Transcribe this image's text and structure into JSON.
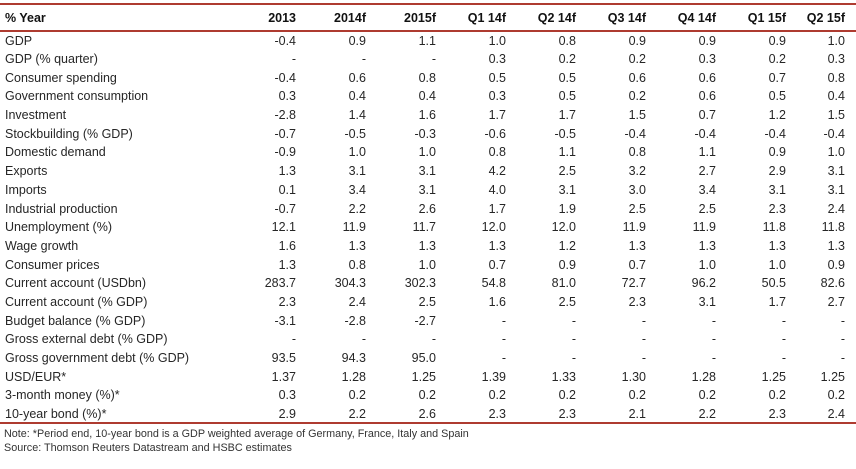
{
  "colors": {
    "rule_red": "#ae3b30",
    "text": "#262626",
    "background": "#ffffff"
  },
  "table": {
    "corner_header": "% Year",
    "column_headers": [
      "2013",
      "2014f",
      "2015f",
      "Q1 14f",
      "Q2 14f",
      "Q3 14f",
      "Q4 14f",
      "Q1 15f",
      "Q2 15f"
    ],
    "rows": [
      {
        "label": "GDP",
        "values": [
          "-0.4",
          "0.9",
          "1.1",
          "1.0",
          "0.8",
          "0.9",
          "0.9",
          "0.9",
          "1.0"
        ]
      },
      {
        "label": "GDP (% quarter)",
        "values": [
          "-",
          "-",
          "-",
          "0.3",
          "0.2",
          "0.2",
          "0.3",
          "0.2",
          "0.3"
        ]
      },
      {
        "label": "Consumer spending",
        "values": [
          "-0.4",
          "0.6",
          "0.8",
          "0.5",
          "0.5",
          "0.6",
          "0.6",
          "0.7",
          "0.8"
        ]
      },
      {
        "label": "Government consumption",
        "values": [
          "0.3",
          "0.4",
          "0.4",
          "0.3",
          "0.5",
          "0.2",
          "0.6",
          "0.5",
          "0.4"
        ]
      },
      {
        "label": "Investment",
        "values": [
          "-2.8",
          "1.4",
          "1.6",
          "1.7",
          "1.7",
          "1.5",
          "0.7",
          "1.2",
          "1.5"
        ]
      },
      {
        "label": "Stockbuilding (% GDP)",
        "values": [
          "-0.7",
          "-0.5",
          "-0.3",
          "-0.6",
          "-0.5",
          "-0.4",
          "-0.4",
          "-0.4",
          "-0.4"
        ]
      },
      {
        "label": "Domestic demand",
        "values": [
          "-0.9",
          "1.0",
          "1.0",
          "0.8",
          "1.1",
          "0.8",
          "1.1",
          "0.9",
          "1.0"
        ]
      },
      {
        "label": "Exports",
        "values": [
          "1.3",
          "3.1",
          "3.1",
          "4.2",
          "2.5",
          "3.2",
          "2.7",
          "2.9",
          "3.1"
        ]
      },
      {
        "label": "Imports",
        "values": [
          "0.1",
          "3.4",
          "3.1",
          "4.0",
          "3.1",
          "3.0",
          "3.4",
          "3.1",
          "3.1"
        ]
      },
      {
        "label": "Industrial production",
        "values": [
          "-0.7",
          "2.2",
          "2.6",
          "1.7",
          "1.9",
          "2.5",
          "2.5",
          "2.3",
          "2.4"
        ]
      },
      {
        "label": "Unemployment (%)",
        "values": [
          "12.1",
          "11.9",
          "11.7",
          "12.0",
          "12.0",
          "11.9",
          "11.9",
          "11.8",
          "11.8"
        ]
      },
      {
        "label": "Wage growth",
        "values": [
          "1.6",
          "1.3",
          "1.3",
          "1.3",
          "1.2",
          "1.3",
          "1.3",
          "1.3",
          "1.3"
        ]
      },
      {
        "label": "Consumer prices",
        "values": [
          "1.3",
          "0.8",
          "1.0",
          "0.7",
          "0.9",
          "0.7",
          "1.0",
          "1.0",
          "0.9"
        ]
      },
      {
        "label": "Current account (USDbn)",
        "values": [
          "283.7",
          "304.3",
          "302.3",
          "54.8",
          "81.0",
          "72.7",
          "96.2",
          "50.5",
          "82.6"
        ]
      },
      {
        "label": "Current account (% GDP)",
        "values": [
          "2.3",
          "2.4",
          "2.5",
          "1.6",
          "2.5",
          "2.3",
          "3.1",
          "1.7",
          "2.7"
        ]
      },
      {
        "label": "Budget balance (% GDP)",
        "values": [
          "-3.1",
          "-2.8",
          "-2.7",
          "-",
          "-",
          "-",
          "-",
          "-",
          "-"
        ]
      },
      {
        "label": "Gross external debt (% GDP)",
        "values": [
          "-",
          "-",
          "-",
          "-",
          "-",
          "-",
          "-",
          "-",
          "-"
        ]
      },
      {
        "label": "Gross government debt (% GDP)",
        "values": [
          "93.5",
          "94.3",
          "95.0",
          "-",
          "-",
          "-",
          "-",
          "-",
          "-"
        ]
      },
      {
        "label": "USD/EUR*",
        "values": [
          "1.37",
          "1.28",
          "1.25",
          "1.39",
          "1.33",
          "1.30",
          "1.28",
          "1.25",
          "1.25"
        ]
      },
      {
        "label": "3-month money (%)*",
        "values": [
          "0.3",
          "0.2",
          "0.2",
          "0.2",
          "0.2",
          "0.2",
          "0.2",
          "0.2",
          "0.2"
        ]
      },
      {
        "label": "10-year bond (%)*",
        "values": [
          "2.9",
          "2.2",
          "2.6",
          "2.3",
          "2.3",
          "2.1",
          "2.2",
          "2.3",
          "2.4"
        ]
      }
    ]
  },
  "footer": {
    "note": "Note: *Period end, 10-year bond is a GDP weighted average of Germany, France, Italy and Spain",
    "source": "Source: Thomson Reuters Datastream and HSBC estimates"
  }
}
